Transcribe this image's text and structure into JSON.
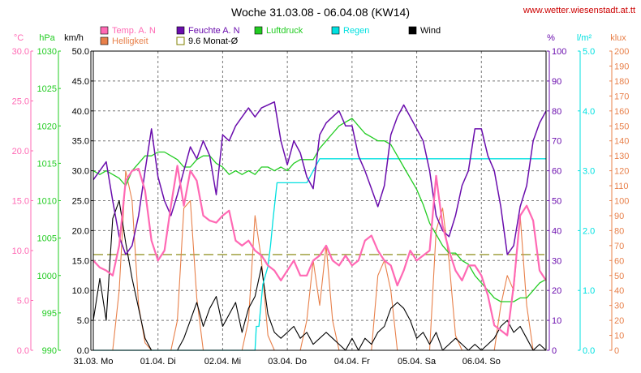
{
  "title": "Woche 31.03.08 - 06.04.08 (KW14)",
  "site": "www.wetter.wiesenstadt.at.tt",
  "chart_data": {
    "type": "line",
    "title": "Woche 31.03.08 - 06.04.08 (KW14)",
    "grid": true,
    "legend": [
      {
        "label": "Temp. A. N",
        "color": "#ff69b4"
      },
      {
        "label": "Feuchte A. N",
        "color": "#6a0dad"
      },
      {
        "label": "Luftdruck",
        "color": "#22cc22"
      },
      {
        "label": "Regen",
        "color": "#00e0e0"
      },
      {
        "label": "Wind",
        "color": "#000000"
      },
      {
        "label": "Helligkeit",
        "color": "#e8804a"
      },
      {
        "label": "9.6 Monat-Ø",
        "color": "#808000"
      }
    ],
    "x_days": [
      "31.03. Mo",
      "01.04. Di",
      "02.04. Mi",
      "03.04. Do",
      "04.04. Fr",
      "05.04. Sa",
      "06.04. So"
    ],
    "axes": {
      "temp": {
        "unit": "°C",
        "ticks": [
          "0.0",
          "5.0",
          "10.0",
          "15.0",
          "20.0",
          "25.0",
          "30.0"
        ],
        "range": [
          0,
          30
        ],
        "color": "#ff69b4"
      },
      "pressure": {
        "unit": "hPa",
        "ticks": [
          "990",
          "995",
          "1000",
          "1005",
          "1010",
          "1015",
          "1020",
          "1025",
          "1030"
        ],
        "range": [
          990,
          1030
        ],
        "color": "#22cc22"
      },
      "wind": {
        "unit": "km/h",
        "ticks": [
          "0.0",
          "5.0",
          "10.0",
          "15.0",
          "20.0",
          "25.0",
          "30.0",
          "35.0",
          "40.0",
          "45.0",
          "50.0"
        ],
        "range": [
          0,
          50
        ],
        "color": "#000000"
      },
      "humidity": {
        "unit": "%",
        "ticks": [
          "0",
          "10",
          "20",
          "30",
          "40",
          "50",
          "60",
          "70",
          "80",
          "90",
          "100"
        ],
        "range": [
          0,
          100
        ],
        "color": "#6a0dad"
      },
      "rain": {
        "unit": "l/m²",
        "ticks": [
          "0.0",
          "1.0",
          "2.0",
          "3.0",
          "4.0",
          "5.0"
        ],
        "range": [
          0,
          5
        ],
        "color": "#00e0e0"
      },
      "light": {
        "unit": "klux",
        "ticks": [
          "0",
          "10",
          "20",
          "30",
          "40",
          "50",
          "60",
          "70",
          "80",
          "90",
          "100",
          "110",
          "120",
          "130",
          "140",
          "150",
          "160",
          "170",
          "180",
          "190",
          "200"
        ],
        "range": [
          0,
          200
        ],
        "color": "#e8804a"
      }
    },
    "reference": {
      "name": "9.6 Monat-Ø",
      "value": 9.6,
      "axis": "temp"
    },
    "series": [
      {
        "name": "Temp. A. N",
        "axis": "temp",
        "color": "#ff69b4",
        "x": [
          0,
          0.1,
          0.2,
          0.3,
          0.4,
          0.5,
          0.6,
          0.7,
          0.8,
          0.9,
          1.0,
          1.1,
          1.2,
          1.3,
          1.4,
          1.5,
          1.6,
          1.7,
          1.8,
          1.9,
          2.0,
          2.1,
          2.2,
          2.3,
          2.4,
          2.5,
          2.6,
          2.7,
          2.8,
          2.9,
          3.0,
          3.1,
          3.2,
          3.3,
          3.4,
          3.5,
          3.6,
          3.7,
          3.8,
          3.9,
          4.0,
          4.1,
          4.2,
          4.3,
          4.4,
          4.5,
          4.6,
          4.7,
          4.8,
          4.9,
          5.0,
          5.1,
          5.2,
          5.3,
          5.4,
          5.5,
          5.6,
          5.7,
          5.8,
          5.9,
          6.0,
          6.1,
          6.2,
          6.3,
          6.4,
          6.5,
          6.6,
          6.7,
          6.8,
          6.9,
          7.0
        ],
        "values": [
          9.0,
          8.3,
          8.0,
          7.5,
          10.5,
          17.0,
          18.0,
          18.2,
          16.0,
          11.0,
          9.0,
          10.0,
          14.5,
          18.5,
          14.5,
          18.0,
          17.0,
          13.5,
          13.0,
          12.8,
          13.5,
          14.0,
          11.0,
          10.5,
          11.0,
          10.0,
          9.5,
          8.5,
          8.0,
          7.0,
          8.0,
          9.0,
          7.5,
          7.5,
          9.0,
          9.5,
          10.5,
          9.0,
          8.5,
          9.5,
          8.5,
          9.0,
          11.0,
          11.5,
          10.0,
          9.0,
          8.5,
          6.5,
          8.0,
          10.0,
          9.0,
          9.5,
          10.0,
          17.5,
          12.5,
          10.0,
          8.0,
          7.0,
          8.5,
          8.5,
          7.5,
          5.5,
          2.5,
          2.0,
          1.5,
          6.5,
          13.5,
          14.5,
          13.0,
          8.0,
          7.0
        ]
      },
      {
        "name": "Feuchte A. N",
        "axis": "humidity",
        "color": "#6a0dad",
        "x": [
          0,
          0.1,
          0.2,
          0.3,
          0.4,
          0.5,
          0.6,
          0.7,
          0.8,
          0.9,
          1.0,
          1.1,
          1.2,
          1.3,
          1.4,
          1.5,
          1.6,
          1.7,
          1.8,
          1.9,
          2.0,
          2.1,
          2.2,
          2.3,
          2.4,
          2.5,
          2.6,
          2.7,
          2.8,
          2.9,
          3.0,
          3.1,
          3.2,
          3.3,
          3.4,
          3.5,
          3.6,
          3.7,
          3.8,
          3.9,
          4.0,
          4.1,
          4.2,
          4.3,
          4.4,
          4.5,
          4.6,
          4.7,
          4.8,
          4.9,
          5.0,
          5.1,
          5.2,
          5.3,
          5.4,
          5.5,
          5.6,
          5.7,
          5.8,
          5.9,
          6.0,
          6.1,
          6.2,
          6.3,
          6.4,
          6.5,
          6.6,
          6.7,
          6.8,
          6.9,
          7.0
        ],
        "values": [
          57,
          60,
          63,
          50,
          38,
          32,
          35,
          45,
          60,
          74,
          58,
          50,
          45,
          52,
          60,
          68,
          64,
          70,
          65,
          52,
          72,
          70,
          75,
          78,
          81,
          78,
          81,
          82,
          83,
          70,
          62,
          70,
          66,
          58,
          54,
          72,
          76,
          78,
          80,
          75,
          75,
          65,
          60,
          54,
          48,
          55,
          72,
          78,
          82,
          78,
          74,
          70,
          60,
          45,
          40,
          38,
          45,
          55,
          60,
          74,
          74,
          65,
          60,
          48,
          32,
          35,
          48,
          55,
          70,
          76,
          80
        ]
      },
      {
        "name": "Luftdruck",
        "axis": "pressure",
        "color": "#22cc22",
        "x": [
          0,
          0.1,
          0.2,
          0.3,
          0.4,
          0.5,
          0.6,
          0.7,
          0.8,
          0.9,
          1.0,
          1.1,
          1.2,
          1.3,
          1.4,
          1.5,
          1.6,
          1.7,
          1.8,
          1.9,
          2.0,
          2.1,
          2.2,
          2.3,
          2.4,
          2.5,
          2.6,
          2.7,
          2.8,
          2.9,
          3.0,
          3.1,
          3.2,
          3.3,
          3.4,
          3.5,
          3.6,
          3.7,
          3.8,
          3.9,
          4.0,
          4.1,
          4.2,
          4.3,
          4.4,
          4.5,
          4.6,
          4.7,
          4.8,
          4.9,
          5.0,
          5.1,
          5.2,
          5.3,
          5.4,
          5.5,
          5.6,
          5.7,
          5.8,
          5.9,
          6.0,
          6.1,
          6.2,
          6.3,
          6.4,
          6.5,
          6.6,
          6.7,
          6.8,
          6.9,
          7.0
        ],
        "values": [
          1014,
          1013.5,
          1014,
          1013.5,
          1013,
          1012,
          1014,
          1015,
          1016,
          1016,
          1016.5,
          1016.5,
          1016,
          1015.5,
          1014.5,
          1014.5,
          1015.5,
          1016,
          1016,
          1015,
          1014.5,
          1013.5,
          1014,
          1013.5,
          1014,
          1013.5,
          1014.5,
          1014.5,
          1014,
          1014.5,
          1014,
          1015,
          1015.5,
          1015.5,
          1015.5,
          1017,
          1018,
          1019,
          1020,
          1020.5,
          1021,
          1020,
          1019,
          1018.5,
          1018,
          1018,
          1017.5,
          1016,
          1014.5,
          1013,
          1011.5,
          1009.5,
          1007,
          1005.5,
          1004,
          1003,
          1003,
          1002,
          1001.5,
          1000,
          999,
          998,
          997,
          996.5,
          996.5,
          996.5,
          997,
          997,
          998,
          999,
          999.5
        ]
      },
      {
        "name": "Regen",
        "axis": "rain",
        "color": "#00e0e0",
        "x": [
          0,
          2.5,
          2.52,
          2.56,
          2.62,
          2.7,
          2.74,
          2.78,
          2.84,
          2.9,
          2.95,
          3.2,
          3.3,
          3.5,
          3.55,
          7.0
        ],
        "values": [
          0,
          0,
          0.4,
          0.4,
          1.1,
          1.4,
          1.75,
          2.2,
          2.8,
          2.8,
          2.8,
          2.8,
          2.8,
          3.2,
          3.2,
          3.2
        ]
      },
      {
        "name": "Wind",
        "axis": "wind",
        "color": "#000000",
        "x": [
          0,
          0.1,
          0.2,
          0.3,
          0.4,
          0.5,
          0.6,
          0.7,
          0.8,
          0.9,
          1.0,
          1.1,
          1.2,
          1.3,
          1.4,
          1.5,
          1.6,
          1.7,
          1.8,
          1.9,
          2.0,
          2.1,
          2.2,
          2.3,
          2.4,
          2.5,
          2.6,
          2.7,
          2.8,
          2.9,
          3.0,
          3.1,
          3.2,
          3.3,
          3.4,
          3.5,
          3.6,
          3.7,
          3.8,
          3.9,
          4.0,
          4.1,
          4.2,
          4.3,
          4.4,
          4.5,
          4.6,
          4.7,
          4.8,
          4.9,
          5.0,
          5.1,
          5.2,
          5.3,
          5.4,
          5.5,
          5.6,
          5.7,
          5.8,
          5.9,
          6.0,
          6.1,
          6.2,
          6.3,
          6.4,
          6.5,
          6.6,
          6.7,
          6.8,
          6.9,
          7.0
        ],
        "values": [
          5,
          12,
          5,
          22,
          25,
          18,
          12,
          7,
          2,
          0,
          0,
          0,
          0,
          0,
          2,
          5,
          8,
          4,
          7,
          9,
          4,
          6,
          8,
          3,
          7,
          9,
          14,
          6,
          3,
          2,
          3,
          4,
          2,
          3,
          1,
          2,
          3,
          2,
          1,
          0,
          2,
          0,
          2,
          1,
          3,
          4,
          7,
          8,
          7,
          5,
          2,
          3,
          1,
          3,
          0,
          1,
          2,
          1,
          0,
          1,
          0,
          1,
          2,
          4,
          5,
          3,
          4,
          2,
          0,
          1,
          0
        ]
      },
      {
        "name": "Helligkeit",
        "axis": "light",
        "color": "#e8804a",
        "x": [
          0,
          0.1,
          0.2,
          0.3,
          0.4,
          0.5,
          0.6,
          0.7,
          0.8,
          0.9,
          1.0,
          1.1,
          1.2,
          1.3,
          1.4,
          1.5,
          1.6,
          1.7,
          1.8,
          1.9,
          2.0,
          2.1,
          2.2,
          2.3,
          2.4,
          2.5,
          2.6,
          2.7,
          2.8,
          2.9,
          3.0,
          3.1,
          3.2,
          3.3,
          3.4,
          3.5,
          3.6,
          3.7,
          3.8,
          3.9,
          4.0,
          4.1,
          4.2,
          4.3,
          4.4,
          4.5,
          4.6,
          4.7,
          4.8,
          4.9,
          5.0,
          5.1,
          5.2,
          5.3,
          5.4,
          5.5,
          5.6,
          5.7,
          5.8,
          5.9,
          6.0,
          6.1,
          6.2,
          6.3,
          6.4,
          6.5,
          6.6,
          6.7,
          6.8,
          6.9,
          7.0
        ],
        "values": [
          0,
          0,
          0,
          0,
          40,
          120,
          100,
          30,
          5,
          0,
          0,
          0,
          0,
          20,
          95,
          100,
          35,
          0,
          0,
          0,
          0,
          0,
          0,
          0,
          20,
          90,
          60,
          10,
          0,
          0,
          0,
          0,
          0,
          20,
          60,
          30,
          70,
          20,
          0,
          0,
          0,
          0,
          0,
          0,
          50,
          60,
          40,
          0,
          0,
          0,
          0,
          0,
          0,
          80,
          95,
          60,
          10,
          0,
          0,
          0,
          0,
          0,
          0,
          30,
          50,
          40,
          90,
          30,
          0,
          0,
          0
        ]
      }
    ]
  }
}
